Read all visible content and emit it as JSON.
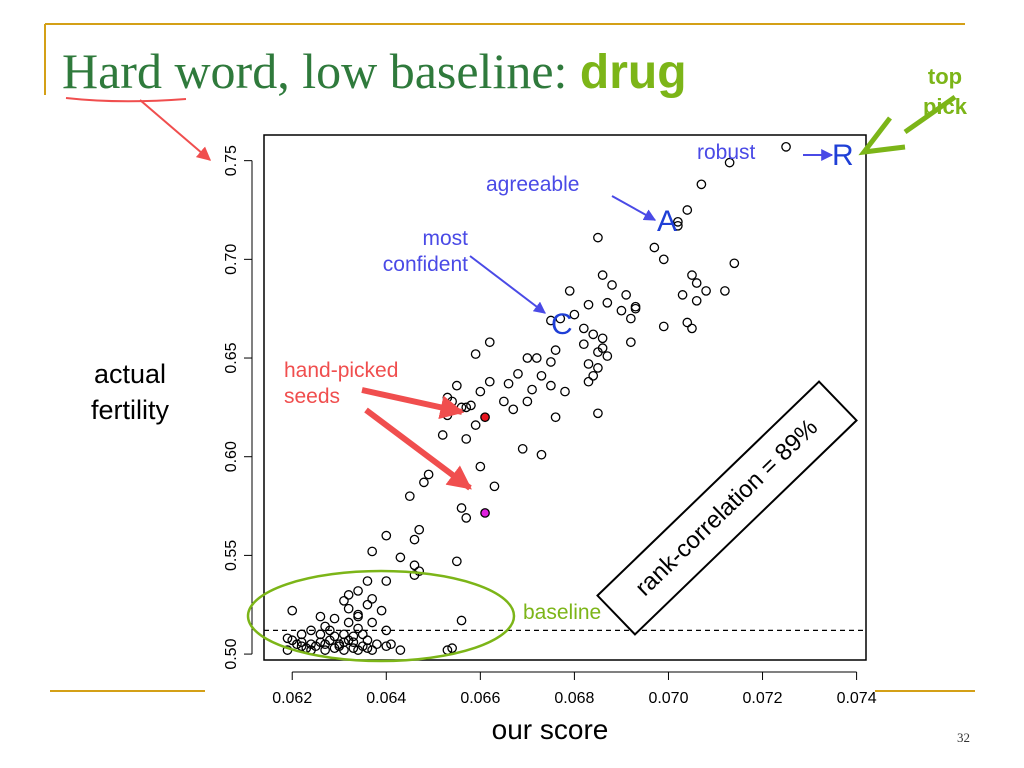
{
  "slide": {
    "title_prefix": "Hard word, low baseline: ",
    "title_keyword": "drug",
    "top_pick_label": "top pick",
    "page_number": "32"
  },
  "annotations": {
    "robust": "robust",
    "agreeable": "agreeable",
    "most_confident_line1": "most",
    "most_confident_line2": "confident",
    "hand_picked_line1": "hand-picked",
    "hand_picked_line2": "seeds",
    "baseline": "baseline",
    "rank_correlation": "rank-correlation = 89%",
    "letters": {
      "R": "R",
      "A": "A",
      "C": "C"
    }
  },
  "colors": {
    "title": "#2f7a3c",
    "accent_green": "#7cb518",
    "annotation_blue": "#4a4ae6",
    "annotation_red": "#f04e4e",
    "seed_red": "#e8141e",
    "seed_magenta": "#e020e0",
    "rule_gold": "#d4a017"
  },
  "chart_data": {
    "type": "scatter",
    "xlabel": "our score",
    "ylabel": "actual fertility",
    "xlim": [
      0.0614,
      0.0742
    ],
    "ylim": [
      0.497,
      0.763
    ],
    "xticks": [
      0.062,
      0.064,
      0.066,
      0.068,
      0.07,
      0.072,
      0.074
    ],
    "xtick_labels": [
      "0.062",
      "0.064",
      "0.066",
      "0.068",
      "0.070",
      "0.072",
      "0.074"
    ],
    "yticks": [
      0.5,
      0.55,
      0.6,
      0.65,
      0.7,
      0.75
    ],
    "ytick_labels": [
      "0.50",
      "0.55",
      "0.60",
      "0.65",
      "0.70",
      "0.75"
    ],
    "baseline_y": 0.512,
    "grid": false,
    "highlighted": [
      {
        "label": "R",
        "x": 0.0738,
        "y": 0.7565
      },
      {
        "label": "A",
        "x": 0.07,
        "y": 0.7245
      },
      {
        "label": "C",
        "x": 0.0676,
        "y": 0.6725
      },
      {
        "x": 0.0661,
        "y": 0.62,
        "fill": "red"
      },
      {
        "x": 0.0661,
        "y": 0.5715,
        "fill": "magenta"
      }
    ],
    "points": [
      [
        0.0725,
        0.757
      ],
      [
        0.0713,
        0.749
      ],
      [
        0.0707,
        0.738
      ],
      [
        0.0704,
        0.725
      ],
      [
        0.0702,
        0.719
      ],
      [
        0.0702,
        0.717
      ],
      [
        0.0714,
        0.698
      ],
      [
        0.0697,
        0.706
      ],
      [
        0.0699,
        0.7
      ],
      [
        0.0685,
        0.711
      ],
      [
        0.0705,
        0.692
      ],
      [
        0.0706,
        0.688
      ],
      [
        0.0708,
        0.684
      ],
      [
        0.0712,
        0.684
      ],
      [
        0.0703,
        0.682
      ],
      [
        0.0706,
        0.679
      ],
      [
        0.0688,
        0.687
      ],
      [
        0.0691,
        0.682
      ],
      [
        0.0687,
        0.678
      ],
      [
        0.0693,
        0.675
      ],
      [
        0.0692,
        0.67
      ],
      [
        0.069,
        0.674
      ],
      [
        0.0686,
        0.692
      ],
      [
        0.0679,
        0.684
      ],
      [
        0.0683,
        0.677
      ],
      [
        0.068,
        0.672
      ],
      [
        0.0677,
        0.67
      ],
      [
        0.0675,
        0.669
      ],
      [
        0.0682,
        0.665
      ],
      [
        0.0684,
        0.662
      ],
      [
        0.0686,
        0.66
      ],
      [
        0.0682,
        0.657
      ],
      [
        0.0686,
        0.655
      ],
      [
        0.0685,
        0.653
      ],
      [
        0.0687,
        0.651
      ],
      [
        0.0683,
        0.647
      ],
      [
        0.0685,
        0.645
      ],
      [
        0.0684,
        0.641
      ],
      [
        0.0683,
        0.638
      ],
      [
        0.0692,
        0.658
      ],
      [
        0.0699,
        0.666
      ],
      [
        0.0704,
        0.668
      ],
      [
        0.0705,
        0.665
      ],
      [
        0.0693,
        0.676
      ],
      [
        0.0685,
        0.622
      ],
      [
        0.0676,
        0.654
      ],
      [
        0.0675,
        0.648
      ],
      [
        0.0672,
        0.65
      ],
      [
        0.0673,
        0.641
      ],
      [
        0.067,
        0.65
      ],
      [
        0.0671,
        0.634
      ],
      [
        0.0675,
        0.636
      ],
      [
        0.0678,
        0.633
      ],
      [
        0.0668,
        0.642
      ],
      [
        0.0666,
        0.637
      ],
      [
        0.067,
        0.628
      ],
      [
        0.0667,
        0.624
      ],
      [
        0.0676,
        0.62
      ],
      [
        0.0662,
        0.658
      ],
      [
        0.0659,
        0.652
      ],
      [
        0.0662,
        0.638
      ],
      [
        0.0665,
        0.628
      ],
      [
        0.066,
        0.633
      ],
      [
        0.0658,
        0.626
      ],
      [
        0.0657,
        0.625
      ],
      [
        0.0655,
        0.636
      ],
      [
        0.0653,
        0.63
      ],
      [
        0.0654,
        0.628
      ],
      [
        0.0656,
        0.625
      ],
      [
        0.0653,
        0.621
      ],
      [
        0.0659,
        0.616
      ],
      [
        0.0657,
        0.609
      ],
      [
        0.0652,
        0.611
      ],
      [
        0.066,
        0.595
      ],
      [
        0.0663,
        0.585
      ],
      [
        0.0669,
        0.604
      ],
      [
        0.0673,
        0.601
      ],
      [
        0.0649,
        0.591
      ],
      [
        0.0648,
        0.587
      ],
      [
        0.0656,
        0.574
      ],
      [
        0.0657,
        0.569
      ],
      [
        0.0645,
        0.58
      ],
      [
        0.0647,
        0.563
      ],
      [
        0.0646,
        0.558
      ],
      [
        0.0647,
        0.542
      ],
      [
        0.064,
        0.56
      ],
      [
        0.0637,
        0.552
      ],
      [
        0.0643,
        0.549
      ],
      [
        0.0646,
        0.545
      ],
      [
        0.0646,
        0.54
      ],
      [
        0.0655,
        0.547
      ],
      [
        0.064,
        0.537
      ],
      [
        0.0636,
        0.537
      ],
      [
        0.0634,
        0.532
      ],
      [
        0.0632,
        0.53
      ],
      [
        0.0631,
        0.527
      ],
      [
        0.0637,
        0.528
      ],
      [
        0.0636,
        0.525
      ],
      [
        0.0639,
        0.522
      ],
      [
        0.0634,
        0.519
      ],
      [
        0.0632,
        0.516
      ],
      [
        0.0634,
        0.513
      ],
      [
        0.0633,
        0.509
      ],
      [
        0.0631,
        0.506
      ],
      [
        0.0629,
        0.509
      ],
      [
        0.0627,
        0.514
      ],
      [
        0.0626,
        0.519
      ],
      [
        0.0624,
        0.512
      ],
      [
        0.0622,
        0.51
      ],
      [
        0.062,
        0.522
      ],
      [
        0.0619,
        0.508
      ],
      [
        0.0621,
        0.505
      ],
      [
        0.0623,
        0.503
      ],
      [
        0.0625,
        0.504
      ],
      [
        0.0627,
        0.502
      ],
      [
        0.0629,
        0.503
      ],
      [
        0.0631,
        0.502
      ],
      [
        0.0633,
        0.503
      ],
      [
        0.0634,
        0.502
      ],
      [
        0.0635,
        0.504
      ],
      [
        0.0636,
        0.503
      ],
      [
        0.0637,
        0.502
      ],
      [
        0.0638,
        0.505
      ],
      [
        0.0636,
        0.507
      ],
      [
        0.0633,
        0.506
      ],
      [
        0.063,
        0.505
      ],
      [
        0.0628,
        0.507
      ],
      [
        0.0626,
        0.506
      ],
      [
        0.0624,
        0.505
      ],
      [
        0.0622,
        0.504
      ],
      [
        0.062,
        0.507
      ],
      [
        0.0619,
        0.502
      ],
      [
        0.0624,
        0.502
      ],
      [
        0.0627,
        0.505
      ],
      [
        0.063,
        0.504
      ],
      [
        0.0632,
        0.507
      ],
      [
        0.0635,
        0.51
      ],
      [
        0.0637,
        0.516
      ],
      [
        0.064,
        0.512
      ],
      [
        0.0641,
        0.505
      ],
      [
        0.0643,
        0.502
      ],
      [
        0.064,
        0.504
      ],
      [
        0.0654,
        0.503
      ],
      [
        0.0653,
        0.502
      ],
      [
        0.0656,
        0.517
      ],
      [
        0.0629,
        0.518
      ],
      [
        0.0626,
        0.51
      ],
      [
        0.0622,
        0.506
      ],
      [
        0.0631,
        0.51
      ],
      [
        0.0634,
        0.52
      ],
      [
        0.0632,
        0.523
      ],
      [
        0.0628,
        0.512
      ]
    ]
  }
}
